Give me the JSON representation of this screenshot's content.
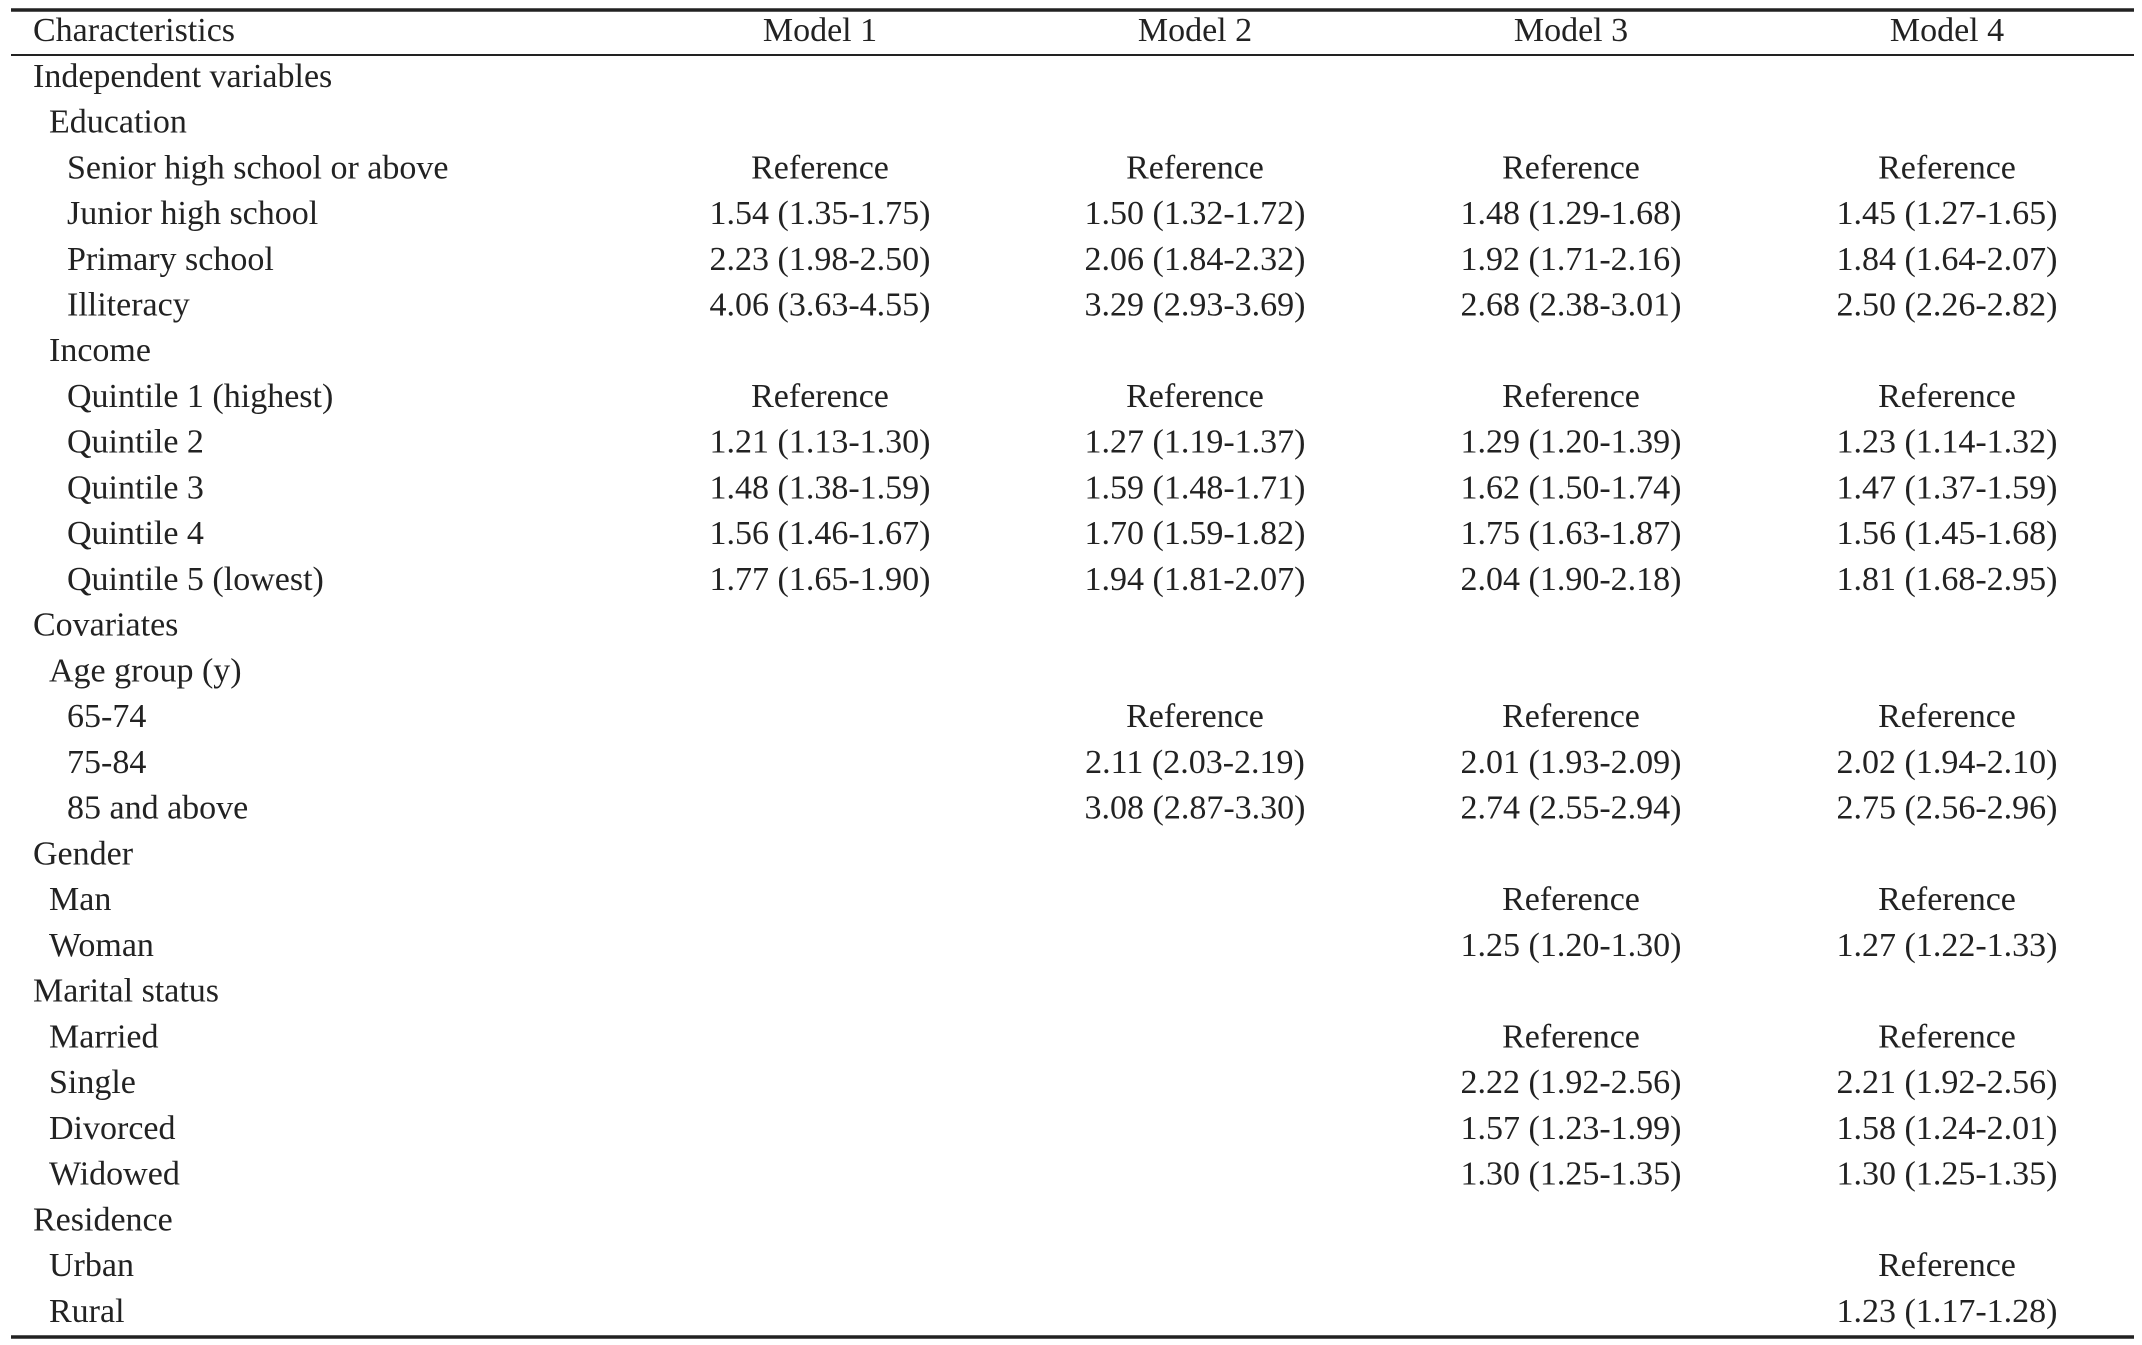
{
  "table": {
    "header": [
      "Characteristics",
      "Model 1",
      "Model 2",
      "Model 3",
      "Model 4"
    ],
    "sections": [
      {
        "label": "Independent variables",
        "groups": [
          {
            "label": "Education",
            "rows": [
              {
                "label": "Senior high school or above",
                "cells": [
                  "Reference",
                  "Reference",
                  "Reference",
                  "Reference"
                ]
              },
              {
                "label": "Junior high school",
                "cells": [
                  "1.54 (1.35-1.75)",
                  "1.50 (1.32-1.72)",
                  "1.48 (1.29-1.68)",
                  "1.45 (1.27-1.65)"
                ]
              },
              {
                "label": "Primary school",
                "cells": [
                  "2.23 (1.98-2.50)",
                  "2.06 (1.84-2.32)",
                  "1.92 (1.71-2.16)",
                  "1.84 (1.64-2.07)"
                ]
              },
              {
                "label": "Illiteracy",
                "cells": [
                  "4.06 (3.63-4.55)",
                  "3.29 (2.93-3.69)",
                  "2.68 (2.38-3.01)",
                  "2.50 (2.26-2.82)"
                ]
              }
            ]
          },
          {
            "label": "Income",
            "rows": [
              {
                "label": "Quintile 1 (highest)",
                "cells": [
                  "Reference",
                  "Reference",
                  "Reference",
                  "Reference"
                ]
              },
              {
                "label": "Quintile 2",
                "cells": [
                  "1.21 (1.13-1.30)",
                  "1.27 (1.19-1.37)",
                  "1.29 (1.20-1.39)",
                  "1.23 (1.14-1.32)"
                ]
              },
              {
                "label": "Quintile 3",
                "cells": [
                  "1.48 (1.38-1.59)",
                  "1.59 (1.48-1.71)",
                  "1.62 (1.50-1.74)",
                  "1.47 (1.37-1.59)"
                ]
              },
              {
                "label": "Quintile 4",
                "cells": [
                  "1.56 (1.46-1.67)",
                  "1.70 (1.59-1.82)",
                  "1.75 (1.63-1.87)",
                  "1.56 (1.45-1.68)"
                ]
              },
              {
                "label": "Quintile 5 (lowest)",
                "cells": [
                  "1.77 (1.65-1.90)",
                  "1.94 (1.81-2.07)",
                  "2.04 (1.90-2.18)",
                  "1.81 (1.68-2.95)"
                ]
              }
            ]
          }
        ]
      },
      {
        "label": "Covariates",
        "groups": [
          {
            "label": "Age group (y)",
            "rows": [
              {
                "label": "65-74",
                "cells": [
                  null,
                  "Reference",
                  "Reference",
                  "Reference"
                ]
              },
              {
                "label": "75-84",
                "cells": [
                  null,
                  "2.11 (2.03-2.19)",
                  "2.01 (1.93-2.09)",
                  "2.02 (1.94-2.10)"
                ]
              },
              {
                "label": "85 and above",
                "cells": [
                  null,
                  "3.08 (2.87-3.30)",
                  "2.74 (2.55-2.94)",
                  "2.75 (2.56-2.96)"
                ]
              }
            ]
          }
        ]
      },
      {
        "label": "Gender",
        "rows": [
          {
            "label": "Man",
            "cells": [
              null,
              null,
              "Reference",
              "Reference"
            ]
          },
          {
            "label": "Woman",
            "cells": [
              null,
              null,
              "1.25 (1.20-1.30)",
              "1.27 (1.22-1.33)"
            ]
          }
        ]
      },
      {
        "label": "Marital status",
        "rows": [
          {
            "label": "Married",
            "cells": [
              null,
              null,
              "Reference",
              "Reference"
            ]
          },
          {
            "label": "Single",
            "cells": [
              null,
              null,
              "2.22 (1.92-2.56)",
              "2.21 (1.92-2.56)"
            ]
          },
          {
            "label": "Divorced",
            "cells": [
              null,
              null,
              "1.57 (1.23-1.99)",
              "1.58 (1.24-2.01)"
            ]
          },
          {
            "label": "Widowed",
            "cells": [
              null,
              null,
              "1.30 (1.25-1.35)",
              "1.30 (1.25-1.35)"
            ]
          }
        ]
      },
      {
        "label": "Residence",
        "rows": [
          {
            "label": "Urban",
            "cells": [
              null,
              null,
              null,
              "Reference"
            ]
          },
          {
            "label": "Rural",
            "cells": [
              null,
              null,
              null,
              "1.23 (1.17-1.28)"
            ]
          }
        ]
      }
    ]
  }
}
